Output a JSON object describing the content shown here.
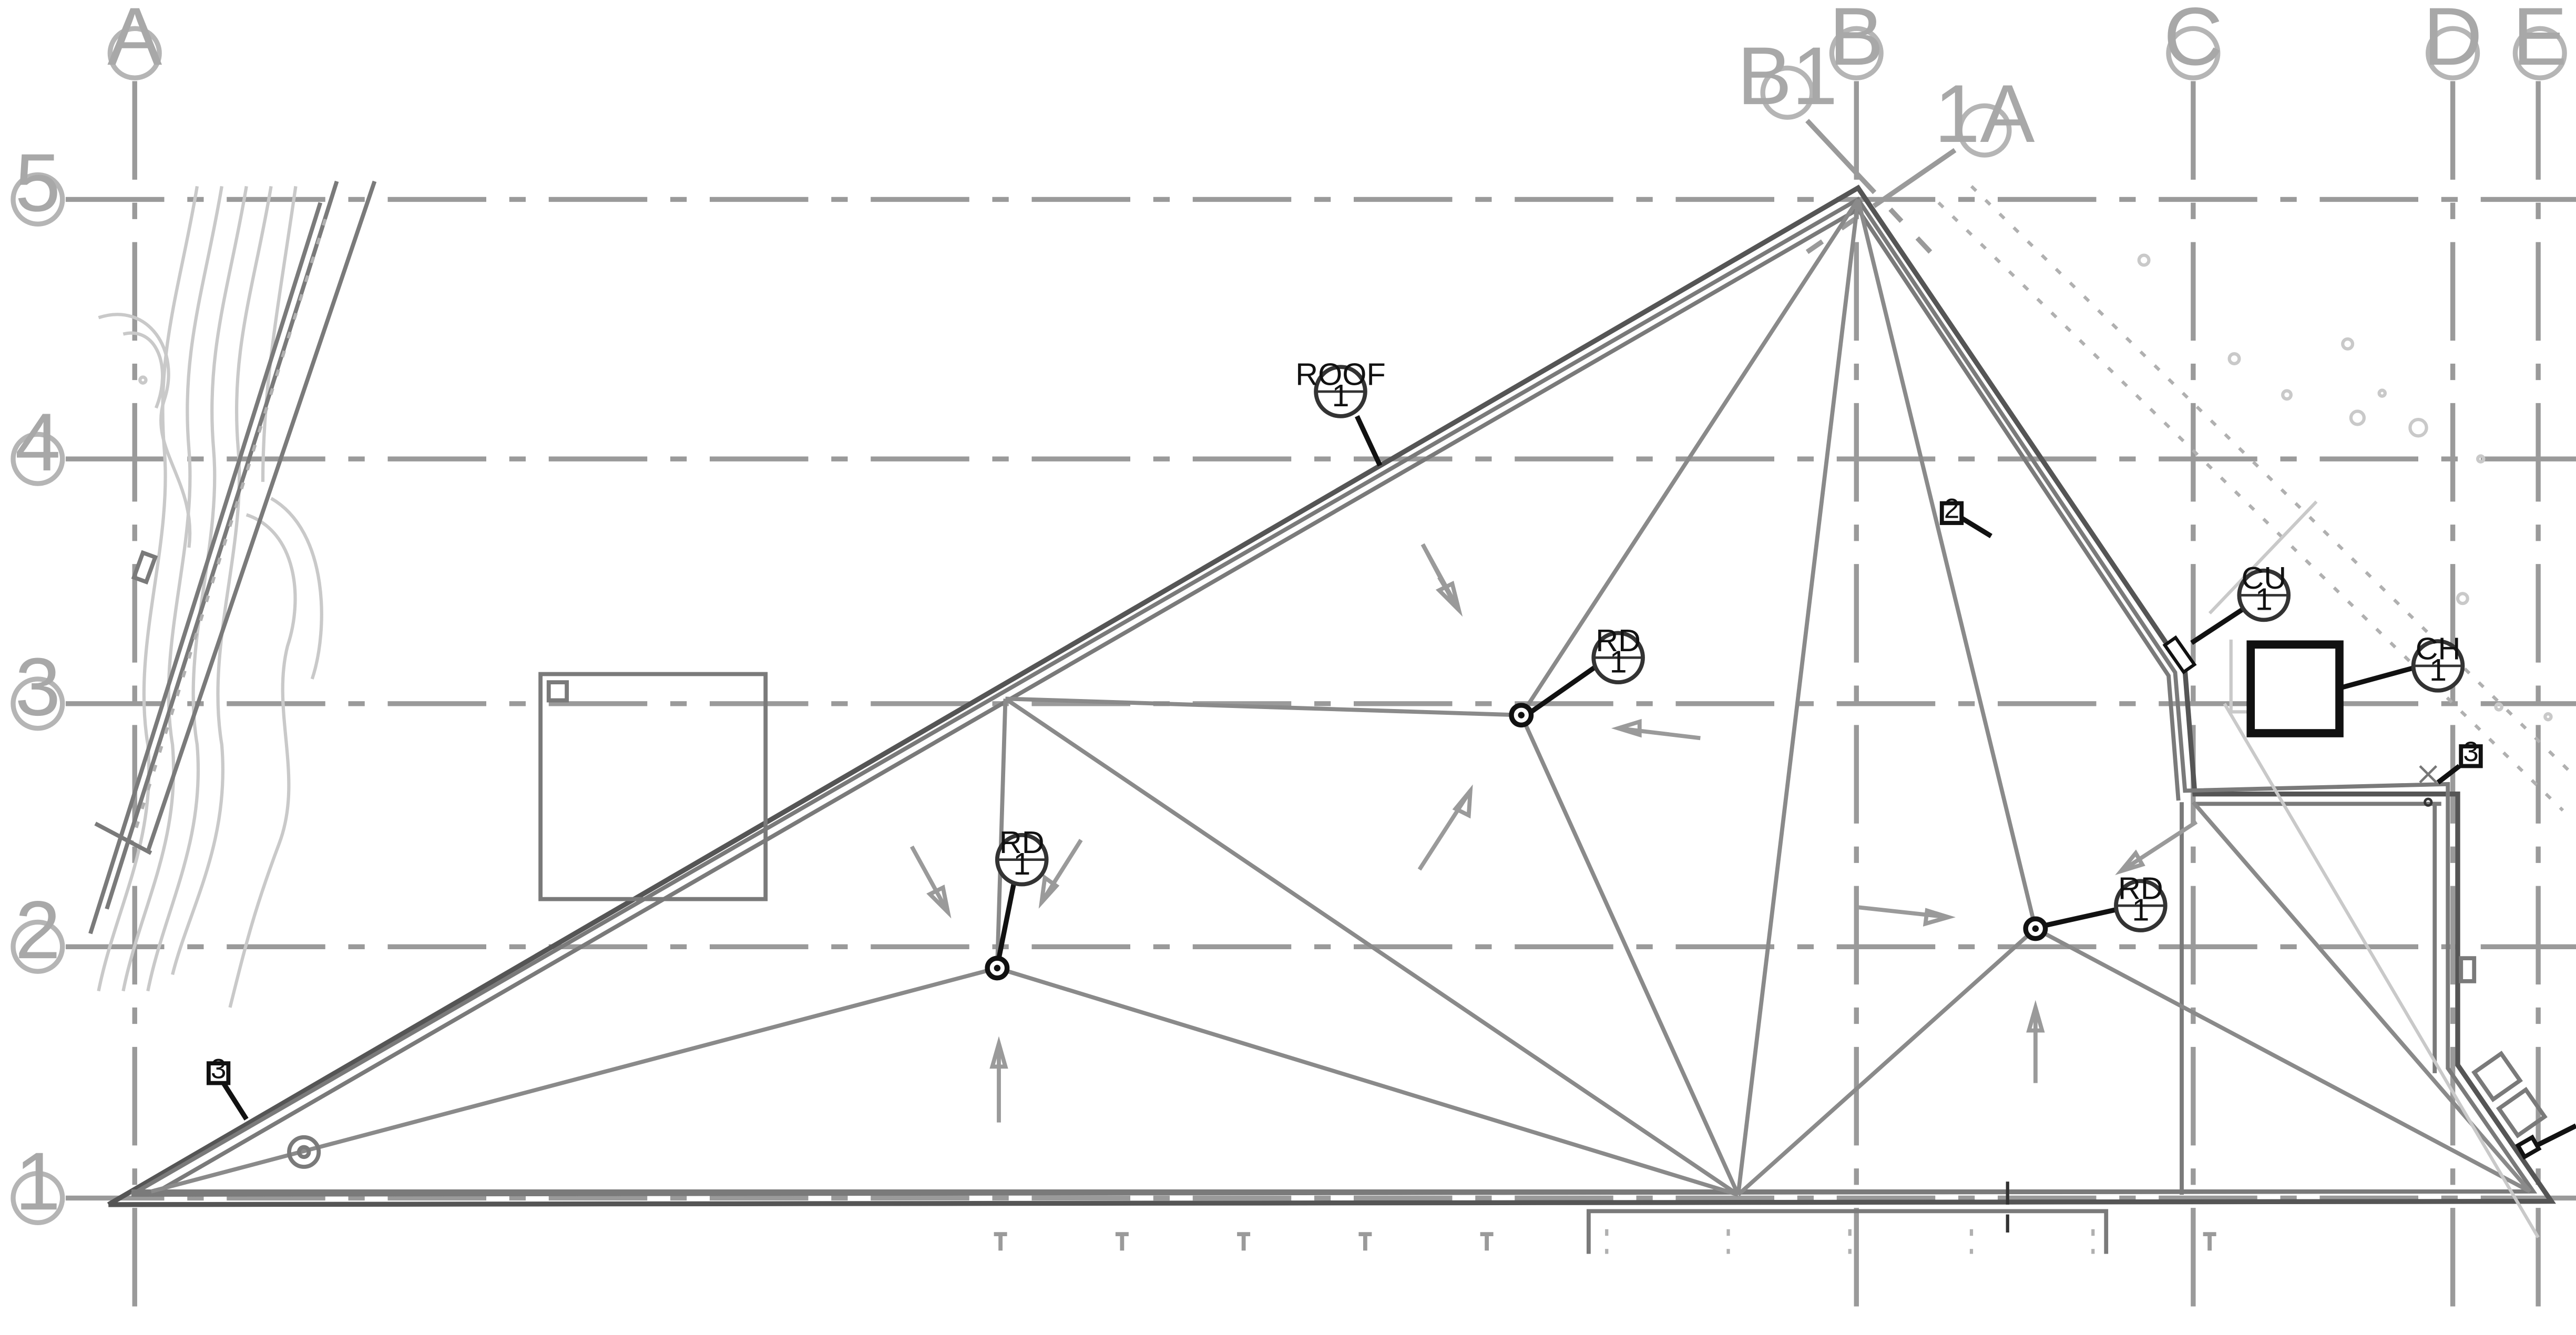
{
  "grid": {
    "columns": [
      {
        "label": "A",
        "id": "a"
      },
      {
        "label": "B1",
        "id": "b1"
      },
      {
        "label": "B",
        "id": "b"
      },
      {
        "label": "1A",
        "id": "1a"
      },
      {
        "label": "C",
        "id": "c"
      },
      {
        "label": "D",
        "id": "d"
      },
      {
        "label": "E",
        "id": "e"
      }
    ],
    "rows": [
      {
        "label": "5",
        "id": "5"
      },
      {
        "label": "4",
        "id": "4"
      },
      {
        "label": "3",
        "id": "3"
      },
      {
        "label": "2",
        "id": "2"
      },
      {
        "label": "1",
        "id": "1"
      }
    ]
  },
  "tags": {
    "roof": {
      "top": "ROOF",
      "bottom": "1"
    },
    "rd_center": {
      "top": "RD",
      "bottom": "1"
    },
    "rd_left": {
      "top": "RD",
      "bottom": "1"
    },
    "rd_right": {
      "top": "RD",
      "bottom": "1"
    },
    "cu": {
      "top": "CU",
      "bottom": "1"
    },
    "ch": {
      "top": "CH",
      "bottom": "1"
    }
  },
  "keynotes": {
    "k2": "2",
    "k3_left": "3",
    "k3_right": "3"
  }
}
